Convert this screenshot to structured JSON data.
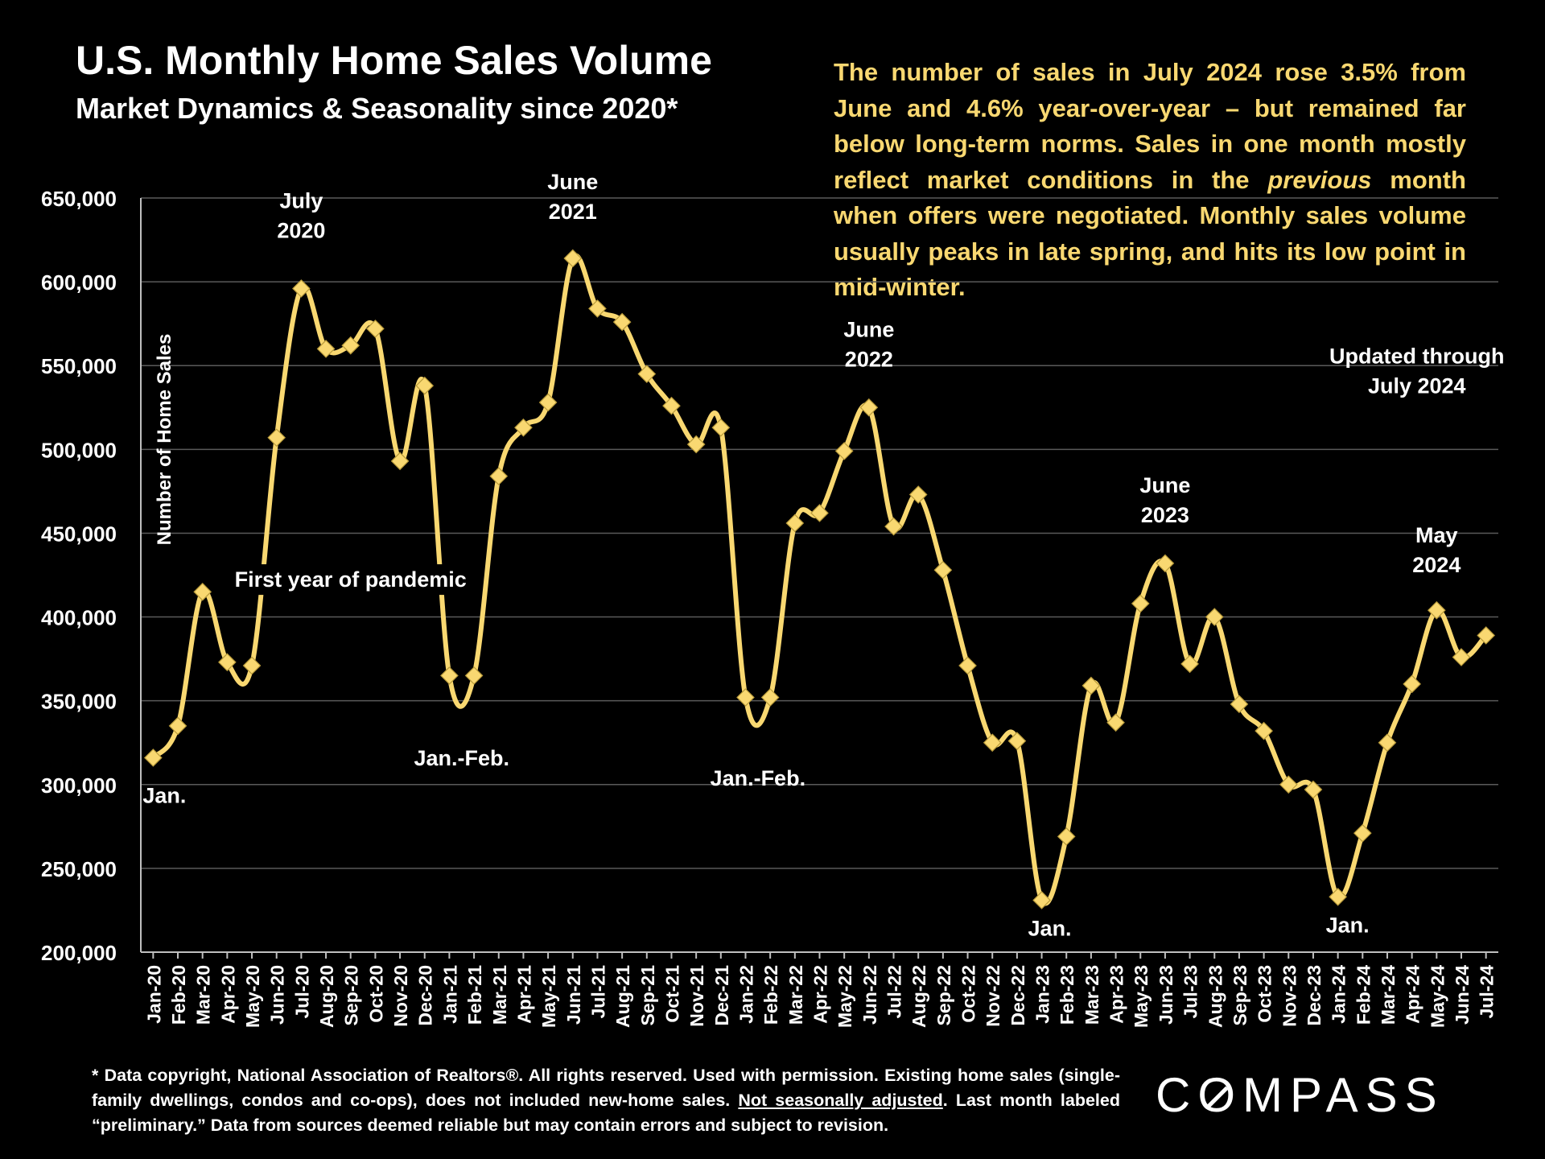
{
  "header": {
    "title": "U.S. Monthly Home Sales Volume",
    "subtitle": "Market Dynamics & Seasonality since 2020*"
  },
  "commentary": {
    "part1": "The number of sales in July 2024 rose 3.5% from June and 4.6% year-over-year – but remained far below long-term norms. Sales in one month mostly reflect market conditions in the ",
    "emphasis": "previous",
    "part2": " month when offers were negotiated. Monthly sales volume usually peaks in late spring, and hits its low point in mid-winter."
  },
  "footnote": {
    "part1": "* Data copyright, National Association of Realtors®. All rights reserved. Used with permission. Existing home sales (single-family dwellings, condos and co-ops), does not included new-home sales. ",
    "underlined": "Not seasonally adjusted",
    "part2": ". Last month labeled “preliminary.” Data from sources deemed reliable but may contain errors and subject to revision."
  },
  "logo": {
    "text": "COMPASS"
  },
  "colors": {
    "line": "#F9D871",
    "grid": "#5a5a5a",
    "background": "#000000"
  },
  "chart_data": {
    "type": "line",
    "ylabel": "Number of Home Sales",
    "ylim": [
      200000,
      650000
    ],
    "yticks": [
      200000,
      250000,
      300000,
      350000,
      400000,
      450000,
      500000,
      550000,
      600000,
      650000
    ],
    "ytick_labels": [
      "200,000",
      "250,000",
      "300,000",
      "350,000",
      "400,000",
      "450,000",
      "500,000",
      "550,000",
      "600,000",
      "650,000"
    ],
    "grid": true,
    "categories": [
      "Jan-20",
      "Feb-20",
      "Mar-20",
      "Apr-20",
      "May-20",
      "Jun-20",
      "Jul-20",
      "Aug-20",
      "Sep-20",
      "Oct-20",
      "Nov-20",
      "Dec-20",
      "Jan-21",
      "Feb-21",
      "Mar-21",
      "Apr-21",
      "May-21",
      "Jun-21",
      "Jul-21",
      "Aug-21",
      "Sep-21",
      "Oct-21",
      "Nov-21",
      "Dec-21",
      "Jan-22",
      "Feb-22",
      "Mar-22",
      "Apr-22",
      "May-22",
      "Jun-22",
      "Jul-22",
      "Aug-22",
      "Sep-22",
      "Oct-22",
      "Nov-22",
      "Dec-22",
      "Jan-23",
      "Feb-23",
      "Mar-23",
      "Apr-23",
      "May-23",
      "Jun-23",
      "Jul-23",
      "Aug-23",
      "Sep-23",
      "Oct-23",
      "Nov-23",
      "Dec-23",
      "Jan-24",
      "Feb-24",
      "Mar-24",
      "Apr-24",
      "May-24",
      "Jun-24",
      "Jul-24"
    ],
    "values": [
      316000,
      335000,
      415000,
      373000,
      371000,
      507000,
      596000,
      560000,
      562000,
      572000,
      493000,
      538000,
      365000,
      365000,
      484000,
      513000,
      528000,
      614000,
      584000,
      576000,
      545000,
      526000,
      503000,
      513000,
      352000,
      352000,
      456000,
      462000,
      499000,
      525000,
      454000,
      473000,
      428000,
      371000,
      325000,
      326000,
      231000,
      269000,
      359000,
      337000,
      408000,
      432000,
      372000,
      400000,
      348000,
      332000,
      300000,
      297000,
      233000,
      271000,
      325000,
      360000,
      404000,
      376000,
      389000
    ],
    "gaps": [
      [
        4,
        5
      ],
      [
        12,
        14
      ]
    ],
    "annotations": [
      {
        "id": "jan20",
        "lines": [
          "Jan."
        ],
        "index": 0,
        "value": 316000
      },
      {
        "id": "jul20",
        "lines": [
          "July",
          "2020"
        ],
        "index": 6,
        "value": 596000
      },
      {
        "id": "pandemic",
        "lines": [
          "First year of pandemic"
        ],
        "index": 8,
        "value": 418000
      },
      {
        "id": "janfeb21",
        "lines": [
          "Jan.-Feb."
        ],
        "index": 12.5,
        "value": 346000
      },
      {
        "id": "jun21",
        "lines": [
          "June",
          "2021"
        ],
        "index": 17,
        "value": 614000
      },
      {
        "id": "janfeb22",
        "lines": [
          "Jan.-Feb."
        ],
        "index": 24.5,
        "value": 334000
      },
      {
        "id": "jun22",
        "lines": [
          "June",
          "2022"
        ],
        "index": 29,
        "value": 525000
      },
      {
        "id": "jan23",
        "lines": [
          "Jan."
        ],
        "index": 36,
        "value": 231000
      },
      {
        "id": "jun23",
        "lines": [
          "June",
          "2023"
        ],
        "index": 41,
        "value": 432000
      },
      {
        "id": "updated",
        "lines": [
          "Updated through",
          "July 2024"
        ],
        "index": 51.2,
        "value": 535000
      },
      {
        "id": "jan24",
        "lines": [
          "Jan."
        ],
        "index": 48,
        "value": 233000
      },
      {
        "id": "may24",
        "lines": [
          "May",
          "2024"
        ],
        "index": 52,
        "value": 404000
      }
    ]
  }
}
